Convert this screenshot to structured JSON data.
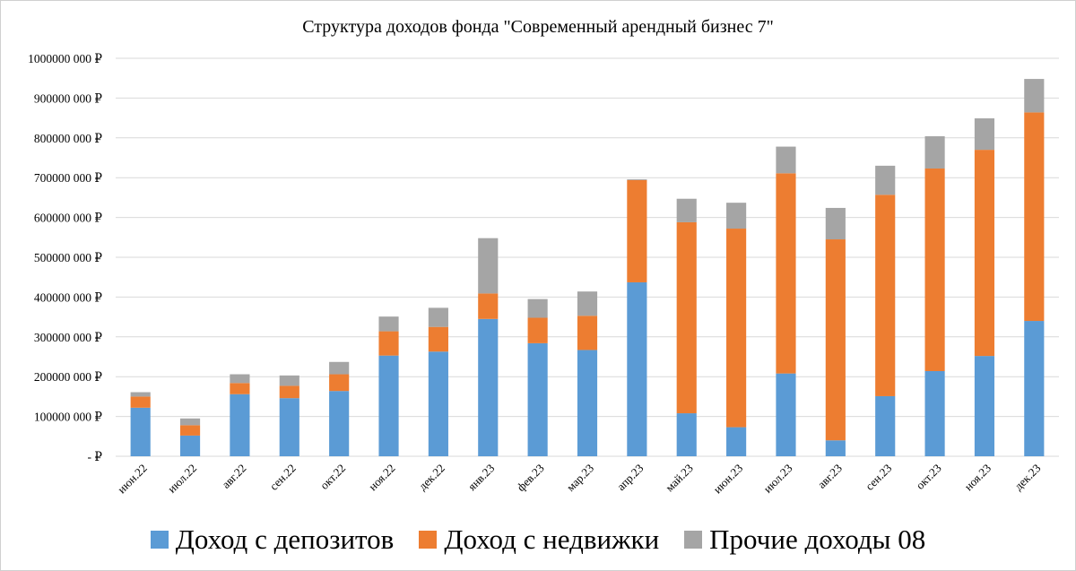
{
  "chart_data": {
    "type": "bar",
    "stacked": true,
    "title": "Структура доходов фонда \"Современный арендный бизнес 7\"",
    "xlabel": "",
    "ylabel": "",
    "ylim": [
      0,
      1000000000
    ],
    "grid": true,
    "legend_position": "bottom",
    "y_tick_labels": [
      "-  ₽",
      "100000 000 ₽",
      "200000 000 ₽",
      "300000 000 ₽",
      "400000 000 ₽",
      "500000 000 ₽",
      "600000 000 ₽",
      "700000 000 ₽",
      "800000 000 ₽",
      "900000 000 ₽",
      "1000000 000 ₽"
    ],
    "categories": [
      "июн.22",
      "июл.22",
      "авг.22",
      "сен.22",
      "окт.22",
      "ноя.22",
      "дек.22",
      "янв.23",
      "фев.23",
      "мар.23",
      "апр.23",
      "май.23",
      "июн.23",
      "июл.23",
      "авг.23",
      "сен.23",
      "окт.23",
      "ноя.23",
      "дек.23"
    ],
    "series": [
      {
        "name": "Доход с депозитов",
        "color": "#5b9bd5",
        "values": [
          122000000,
          52000000,
          156000000,
          146000000,
          164000000,
          253000000,
          263000000,
          345000000,
          284000000,
          267000000,
          437000000,
          108000000,
          73000000,
          208000000,
          40000000,
          151000000,
          214000000,
          252000000,
          340000000
        ]
      },
      {
        "name": "Доход с недвижки",
        "color": "#ed7d31",
        "values": [
          28000000,
          26000000,
          28000000,
          31000000,
          42000000,
          61000000,
          62000000,
          64000000,
          64000000,
          86000000,
          257000000,
          480000000,
          499000000,
          503000000,
          505000000,
          506000000,
          509000000,
          518000000,
          524000000
        ]
      },
      {
        "name": "Прочие доходы 08",
        "color": "#a5a5a5",
        "values": [
          11000000,
          17000000,
          22000000,
          26000000,
          31000000,
          37000000,
          48000000,
          139000000,
          47000000,
          61000000,
          2000000,
          59000000,
          65000000,
          67000000,
          79000000,
          73000000,
          81000000,
          79000000,
          84000000
        ]
      }
    ]
  }
}
